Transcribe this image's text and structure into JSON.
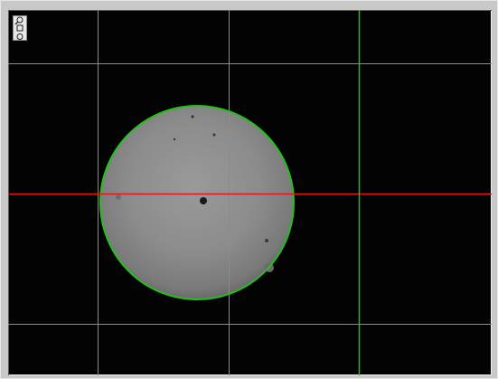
{
  "viewer": {
    "background_color": "#030303",
    "grid_color": "#8c8c8c",
    "crosshair_horizontal_color": "#e01818",
    "crosshair_vertical_color": "#22c21a",
    "detected_circle_color": "#22c21a",
    "sample_color": "#8a8a8a"
  },
  "toolbar": {
    "zoom_icons": [
      "zoom-in-icon",
      "zoom-fit-icon",
      "zoom-out-icon"
    ]
  }
}
